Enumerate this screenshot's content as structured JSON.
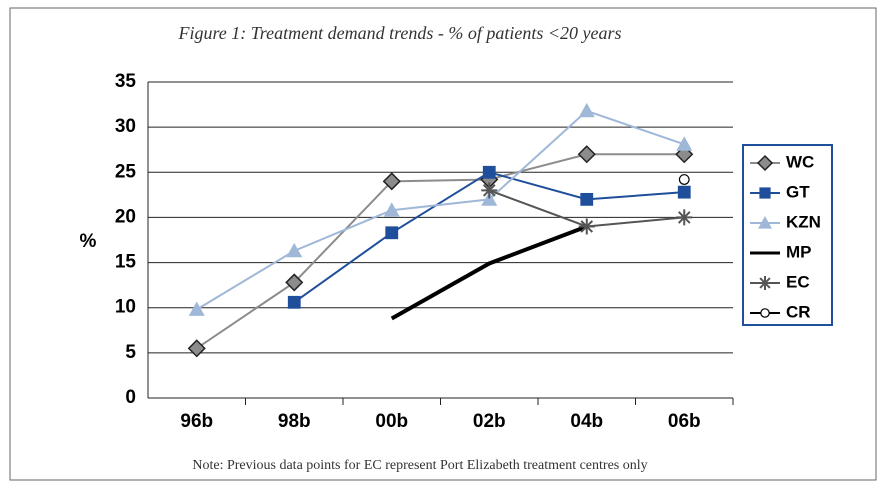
{
  "chart_data": {
    "type": "line",
    "title": "Figure 1: Treatment demand trends - % of patients <20 years",
    "y_label": "%",
    "note": "Note: Previous data points for EC represent Port Elizabeth treatment centres only",
    "categories": [
      "96b",
      "98b",
      "00b",
      "02b",
      "04b",
      "06b"
    ],
    "ylim": [
      0,
      35
    ],
    "yticks": [
      0,
      5,
      10,
      15,
      20,
      25,
      30,
      35
    ],
    "grid": true,
    "series": [
      {
        "name": "WC",
        "color": "#8c8c8c",
        "marker": "diamond",
        "values": [
          5.5,
          12.8,
          24,
          24.2,
          27,
          27
        ]
      },
      {
        "name": "GT",
        "color": "#1f4e9a",
        "marker": "square",
        "values": [
          null,
          10.6,
          18.3,
          25,
          22,
          22.8
        ]
      },
      {
        "name": "KZN",
        "color": "#9fb8d8",
        "marker": "triangle",
        "values": [
          9.8,
          16.3,
          20.8,
          22,
          31.8,
          28.1
        ]
      },
      {
        "name": "MP",
        "color": "#000000",
        "marker": "none",
        "line_width": 4,
        "values": [
          null,
          null,
          8.8,
          14.9,
          19,
          null
        ]
      },
      {
        "name": "EC",
        "color": "#555555",
        "marker": "asterisk",
        "values": [
          null,
          null,
          null,
          23,
          19,
          20
        ]
      },
      {
        "name": "CR",
        "color": "#000000",
        "marker": "circle",
        "values": [
          null,
          null,
          null,
          null,
          null,
          24.2
        ]
      }
    ]
  }
}
